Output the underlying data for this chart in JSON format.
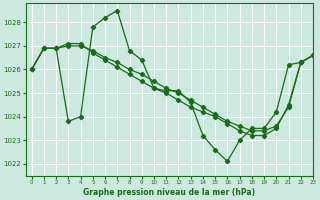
{
  "bg_color": "#cce8df",
  "grid_color": "#aaccbb",
  "line_color": "#1a6b1a",
  "title": "Graphe pression niveau de la mer (hPa)",
  "xlim": [
    -0.5,
    23
  ],
  "ylim": [
    1021.5,
    1028.8
  ],
  "yticks": [
    1022,
    1023,
    1024,
    1025,
    1026,
    1027,
    1028
  ],
  "xticks": [
    0,
    1,
    2,
    3,
    4,
    5,
    6,
    7,
    8,
    9,
    10,
    11,
    12,
    13,
    14,
    15,
    16,
    17,
    18,
    19,
    20,
    21,
    22,
    23
  ],
  "line1_x": [
    0,
    1,
    2,
    3,
    4,
    5,
    6,
    7,
    8,
    9,
    10,
    11,
    12,
    13,
    14,
    15,
    16,
    17,
    18,
    19,
    20,
    21,
    22,
    23
  ],
  "line1_y": [
    1026.0,
    1026.9,
    1026.9,
    1023.8,
    1024.0,
    1027.8,
    1028.2,
    1028.5,
    1026.8,
    1026.4,
    1025.2,
    1025.1,
    1025.1,
    1024.6,
    1023.2,
    1022.6,
    1022.1,
    1023.0,
    1023.5,
    1023.5,
    1024.2,
    1026.2,
    1026.3,
    1026.6
  ],
  "line2_x": [
    0,
    1,
    2,
    3,
    4,
    5,
    6,
    7,
    8,
    9,
    10,
    11,
    12,
    13,
    14,
    15,
    16,
    17,
    18,
    19,
    20,
    21,
    22,
    23
  ],
  "line2_y": [
    1026.0,
    1026.9,
    1026.9,
    1027.0,
    1027.0,
    1026.8,
    1026.5,
    1026.3,
    1026.0,
    1025.8,
    1025.5,
    1025.2,
    1025.0,
    1024.7,
    1024.4,
    1024.1,
    1023.8,
    1023.6,
    1023.4,
    1023.4,
    1023.6,
    1024.4,
    1026.3,
    1026.6
  ],
  "line3_x": [
    0,
    1,
    2,
    3,
    4,
    5,
    6,
    7,
    8,
    9,
    10,
    11,
    12,
    13,
    14,
    15,
    16,
    17,
    18,
    19,
    20,
    21,
    22,
    23
  ],
  "line3_y": [
    1026.0,
    1026.9,
    1026.9,
    1027.1,
    1027.1,
    1026.7,
    1026.4,
    1026.1,
    1025.8,
    1025.5,
    1025.2,
    1025.0,
    1024.7,
    1024.4,
    1024.2,
    1024.0,
    1023.7,
    1023.4,
    1023.2,
    1023.2,
    1023.5,
    1024.5,
    1026.3,
    1026.6
  ]
}
